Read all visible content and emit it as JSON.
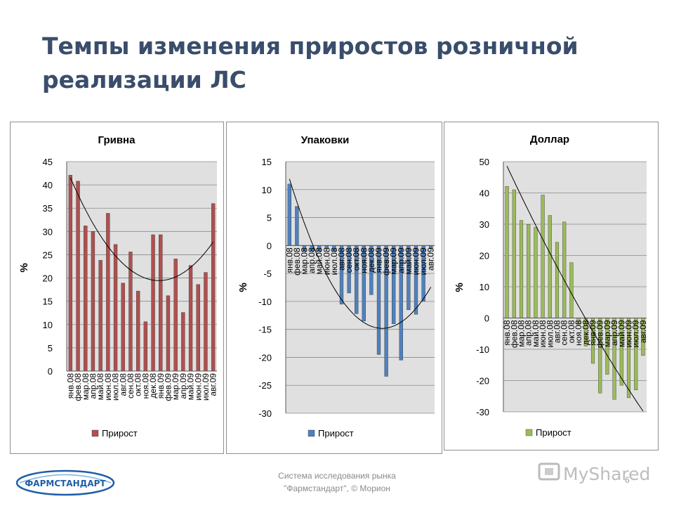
{
  "slide": {
    "title_lines": [
      "Темпы изменения приростов розничной",
      "реализации ЛС"
    ],
    "footer_lines": [
      "Система исследования рынка",
      "\"Фармстандарт\", © Морион"
    ],
    "page_number": "6",
    "logo_text": "ФАРМСТАНДАРТ",
    "watermark_text": "MyShared"
  },
  "colors": {
    "title": "#3a4d6b",
    "plot_bg": "#e0e0e0",
    "gridline": "#8a8a8a",
    "bar_hryvnia": "#b0504f",
    "bar_packages": "#4f81bd",
    "bar_dollar": "#9bbb59",
    "trendline": "#000000",
    "logo_blue": "#1f5fa8"
  },
  "chart_data": [
    {
      "type": "bar",
      "title": "Гривна",
      "ylabel": "%",
      "ylim": [
        0,
        45
      ],
      "yticks": [
        0,
        5,
        10,
        15,
        20,
        25,
        30,
        35,
        40,
        45
      ],
      "categories": [
        "янв.08",
        "фев.08",
        "мар.08",
        "апр.08",
        "май.08",
        "июн.08",
        "июл.08",
        "авг.08",
        "сен.08",
        "окт.08",
        "ноя.08",
        "дек.08",
        "янв.09",
        "фев.09",
        "мар.09",
        "апр.09",
        "май.09",
        "июн.09",
        "июл.09",
        "авг.09"
      ],
      "series": [
        {
          "name": "Прирост",
          "values": [
            42.1,
            40.8,
            31.2,
            30.0,
            23.8,
            33.9,
            27.2,
            18.9,
            25.6,
            17.2,
            10.6,
            29.3,
            29.3,
            16.2,
            24.1,
            12.6,
            22.7,
            18.6,
            21.2,
            36.0
          ]
        }
      ],
      "trendline": "polynomial",
      "legend": "bottom-left"
    },
    {
      "type": "bar",
      "title": "Упаковки",
      "ylabel": "%",
      "ylim": [
        -30,
        15
      ],
      "yticks": [
        -30,
        -25,
        -20,
        -15,
        -10,
        -5,
        0,
        5,
        10,
        15
      ],
      "categories": [
        "янв.08",
        "фев.08",
        "мар.08",
        "апр.08",
        "май.08",
        "июн.08",
        "июл.08",
        "авг.08",
        "сен.08",
        "окт.08",
        "ноя.08",
        "дек.08",
        "янв.09",
        "фев.09",
        "мар.09",
        "апр.09",
        "май.09",
        "июн.09",
        "июл.09",
        "авг.09"
      ],
      "series": [
        {
          "name": "Прирост",
          "values": [
            11.0,
            7.0,
            -1.0,
            -1.0,
            -1.0,
            -0.5,
            -1.0,
            -10.5,
            -8.5,
            -12.2,
            -13.5,
            -8.8,
            -19.5,
            -23.4,
            -14.0,
            -20.5,
            -11.5,
            -12.3,
            -10.0,
            -0.5
          ]
        }
      ],
      "trendline": "polynomial",
      "legend": "bottom-left"
    },
    {
      "type": "bar",
      "title": "Доллар",
      "ylabel": "%",
      "ylim": [
        -30,
        50
      ],
      "yticks": [
        -30,
        -20,
        -10,
        0,
        10,
        20,
        30,
        40,
        50
      ],
      "categories": [
        "янв.08",
        "фев.08",
        "мар.08",
        "апр.08",
        "май.08",
        "июн.08",
        "июл.08",
        "авг.08",
        "сен.08",
        "окт.08",
        "ноя.08",
        "дек.08",
        "янв.09",
        "фев.09",
        "мар.09",
        "апр.09",
        "май.09",
        "июн.09",
        "июл.09",
        "авг.09"
      ],
      "series": [
        {
          "name": "Прирост",
          "values": [
            42.1,
            41.0,
            31.2,
            29.9,
            29.0,
            39.3,
            32.8,
            24.2,
            30.7,
            17.7,
            -2.0,
            -9.0,
            -14.5,
            -24.0,
            -18.0,
            -26.0,
            -21.5,
            -25.5,
            -23.0,
            -12.0
          ]
        }
      ],
      "trendline": "polynomial",
      "legend": "bottom-left"
    }
  ]
}
